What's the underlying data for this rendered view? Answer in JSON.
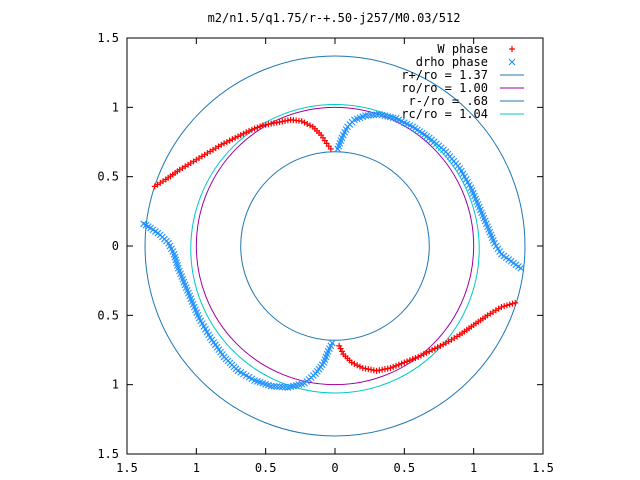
{
  "chart_data": {
    "type": "scatter",
    "title": "m2/n1.5/q1.75/r-+.50-j257/M0.03/512",
    "xlabel": "",
    "ylabel": "",
    "xlim": [
      -1.5,
      1.5
    ],
    "ylim": [
      -1.5,
      1.5
    ],
    "x_tick_values": [
      -1.5,
      -1,
      -0.5,
      0,
      0.5,
      1,
      1.5
    ],
    "x_tick_labels": [
      "1.5",
      "1",
      "0.5",
      "0",
      "0.5",
      "1",
      "1.5"
    ],
    "y_tick_values": [
      1.5,
      1,
      0.5,
      0,
      -0.5,
      -1,
      -1.5
    ],
    "y_tick_labels": [
      "1.5",
      "1",
      "0.5",
      "0",
      "0.5",
      "1",
      "1.5"
    ],
    "grid": false,
    "legend_position": "top-right",
    "point_series": [
      {
        "name": "W phase",
        "marker": "plus",
        "color": "#ff0000",
        "points": [
          [
            -1.3,
            0.43
          ],
          [
            -1.22,
            0.48
          ],
          [
            -1.12,
            0.55
          ],
          [
            -1.02,
            0.61
          ],
          [
            -0.92,
            0.67
          ],
          [
            -0.82,
            0.73
          ],
          [
            -0.72,
            0.78
          ],
          [
            -0.62,
            0.83
          ],
          [
            -0.52,
            0.87
          ],
          [
            -0.42,
            0.89
          ],
          [
            -0.32,
            0.91
          ],
          [
            -0.24,
            0.9
          ],
          [
            -0.16,
            0.86
          ],
          [
            -0.1,
            0.8
          ],
          [
            -0.06,
            0.74
          ],
          [
            -0.03,
            0.7
          ],
          [
            0.03,
            -0.72
          ],
          [
            0.06,
            -0.78
          ],
          [
            0.12,
            -0.84
          ],
          [
            0.2,
            -0.88
          ],
          [
            0.3,
            -0.9
          ],
          [
            0.4,
            -0.88
          ],
          [
            0.5,
            -0.84
          ],
          [
            0.6,
            -0.8
          ],
          [
            0.7,
            -0.75
          ],
          [
            0.8,
            -0.7
          ],
          [
            0.9,
            -0.64
          ],
          [
            1.0,
            -0.57
          ],
          [
            1.1,
            -0.5
          ],
          [
            1.2,
            -0.44
          ],
          [
            1.3,
            -0.41
          ]
        ]
      },
      {
        "name": "drho phase",
        "marker": "cross",
        "color": "#1e90ff",
        "points": [
          [
            -1.38,
            0.16
          ],
          [
            -1.33,
            0.13
          ],
          [
            -1.26,
            0.08
          ],
          [
            -1.2,
            0.02
          ],
          [
            -1.16,
            -0.06
          ],
          [
            -1.13,
            -0.16
          ],
          [
            -1.09,
            -0.26
          ],
          [
            -1.04,
            -0.38
          ],
          [
            -0.98,
            -0.52
          ],
          [
            -0.9,
            -0.66
          ],
          [
            -0.8,
            -0.8
          ],
          [
            -0.7,
            -0.9
          ],
          [
            -0.58,
            -0.97
          ],
          [
            -0.46,
            -1.01
          ],
          [
            -0.34,
            -1.02
          ],
          [
            -0.22,
            -0.99
          ],
          [
            -0.14,
            -0.92
          ],
          [
            -0.08,
            -0.84
          ],
          [
            -0.05,
            -0.76
          ],
          [
            -0.02,
            -0.7
          ],
          [
            0.02,
            0.7
          ],
          [
            0.05,
            0.78
          ],
          [
            0.09,
            0.86
          ],
          [
            0.14,
            0.91
          ],
          [
            0.22,
            0.94
          ],
          [
            0.32,
            0.95
          ],
          [
            0.44,
            0.92
          ],
          [
            0.56,
            0.86
          ],
          [
            0.68,
            0.78
          ],
          [
            0.8,
            0.68
          ],
          [
            0.9,
            0.56
          ],
          [
            0.98,
            0.42
          ],
          [
            1.04,
            0.28
          ],
          [
            1.1,
            0.14
          ],
          [
            1.15,
            0.02
          ],
          [
            1.2,
            -0.06
          ],
          [
            1.27,
            -0.11
          ],
          [
            1.34,
            -0.16
          ]
        ]
      }
    ],
    "circle_series": [
      {
        "name": "r+/ro = 1.37",
        "radius": 1.37,
        "color": "#1f77b4"
      },
      {
        "name": "ro/ro = 1.00",
        "radius": 1.0,
        "color": "#a000a0"
      },
      {
        "name": "r-/ro = .68",
        "radius": 0.68,
        "color": "#1f77b4"
      },
      {
        "name": "rc/ro = 1.04",
        "radius": 1.04,
        "color": "#00c8c8",
        "center_y": -0.02
      }
    ]
  }
}
